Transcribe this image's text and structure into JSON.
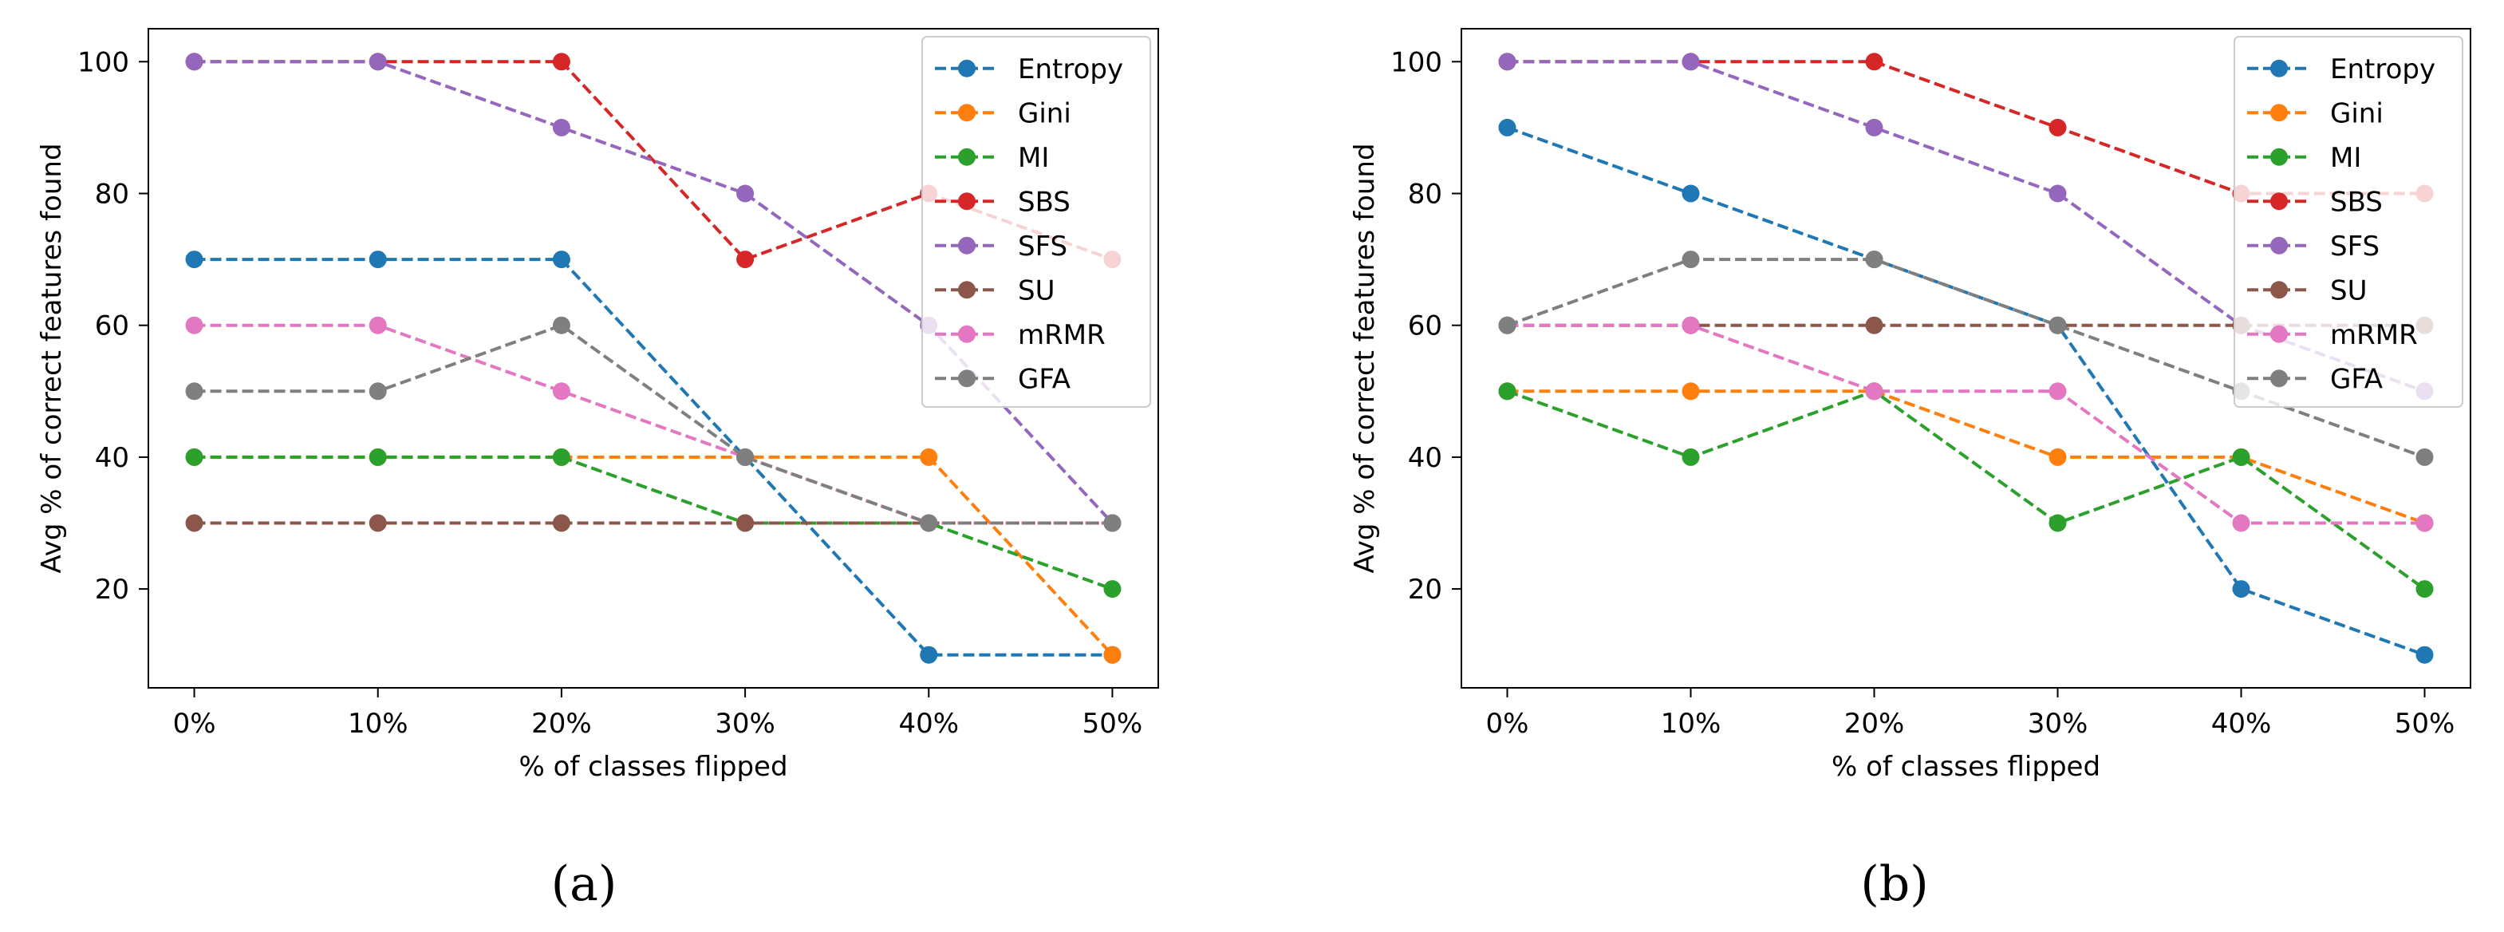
{
  "chart_data": [
    {
      "type": "line",
      "caption": "(a)",
      "xlabel": "% of classes flipped",
      "ylabel": "Avg % of correct features found",
      "categories": [
        "0%",
        "10%",
        "20%",
        "30%",
        "40%",
        "50%"
      ],
      "y_ticks": [
        20,
        40,
        60,
        80,
        100
      ],
      "ylim": [
        5,
        105
      ],
      "legend_position": "top-right",
      "line_style": "dashed",
      "series": [
        {
          "name": "Entropy",
          "color": "#1f77b4",
          "values": [
            70,
            70,
            70,
            40,
            10,
            10
          ]
        },
        {
          "name": "Gini",
          "color": "#ff7f0e",
          "values": [
            40,
            40,
            40,
            40,
            40,
            10
          ]
        },
        {
          "name": "MI",
          "color": "#2ca02c",
          "values": [
            40,
            40,
            40,
            30,
            30,
            20
          ]
        },
        {
          "name": "SBS",
          "color": "#d62728",
          "values": [
            100,
            100,
            100,
            70,
            80,
            70
          ]
        },
        {
          "name": "SFS",
          "color": "#9467bd",
          "values": [
            100,
            100,
            90,
            80,
            60,
            30
          ]
        },
        {
          "name": "SU",
          "color": "#8c564b",
          "values": [
            30,
            30,
            30,
            30,
            30,
            30
          ]
        },
        {
          "name": "mRMR",
          "color": "#e377c2",
          "values": [
            60,
            60,
            50,
            40,
            30,
            30
          ]
        },
        {
          "name": "GFA",
          "color": "#7f7f7f",
          "values": [
            50,
            50,
            60,
            40,
            30,
            30
          ]
        }
      ]
    },
    {
      "type": "line",
      "caption": "(b)",
      "xlabel": "% of classes flipped",
      "ylabel": "Avg % of correct features found",
      "categories": [
        "0%",
        "10%",
        "20%",
        "30%",
        "40%",
        "50%"
      ],
      "y_ticks": [
        20,
        40,
        60,
        80,
        100
      ],
      "ylim": [
        5,
        105
      ],
      "legend_position": "top-right",
      "line_style": "dashed",
      "series": [
        {
          "name": "Entropy",
          "color": "#1f77b4",
          "values": [
            90,
            80,
            70,
            60,
            20,
            10
          ]
        },
        {
          "name": "Gini",
          "color": "#ff7f0e",
          "values": [
            50,
            50,
            50,
            40,
            40,
            30
          ]
        },
        {
          "name": "MI",
          "color": "#2ca02c",
          "values": [
            50,
            40,
            50,
            30,
            40,
            20
          ]
        },
        {
          "name": "SBS",
          "color": "#d62728",
          "values": [
            100,
            100,
            100,
            90,
            80,
            80
          ]
        },
        {
          "name": "SFS",
          "color": "#9467bd",
          "values": [
            100,
            100,
            90,
            80,
            60,
            50
          ]
        },
        {
          "name": "SU",
          "color": "#8c564b",
          "values": [
            60,
            60,
            60,
            60,
            60,
            60
          ]
        },
        {
          "name": "mRMR",
          "color": "#e377c2",
          "values": [
            60,
            60,
            50,
            50,
            30,
            30
          ]
        },
        {
          "name": "GFA",
          "color": "#7f7f7f",
          "values": [
            60,
            70,
            70,
            60,
            50,
            40
          ]
        }
      ]
    }
  ]
}
